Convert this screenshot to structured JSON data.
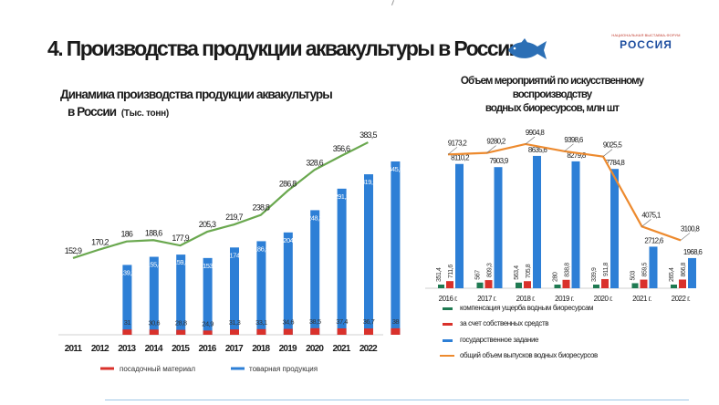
{
  "slide": {
    "title": "4. Производства продукции аквакультуры в России",
    "logo_small": "НАЦИОНАЛЬНАЯ ВЫСТАВКА-ФОРУМ",
    "logo_main": "РОССИЯ",
    "icon": "fish-icon"
  },
  "colors": {
    "blue": "#2d7fd6",
    "red": "#d9312b",
    "green_line": "#6aa84f",
    "orange_line": "#ed8a2e",
    "dark_green": "#1f7a52"
  },
  "chart_data": [
    {
      "type": "bar",
      "title_line1": "Динамика производства продукции аквакультуры",
      "title_line2": "в России",
      "unit": "(Тыс. тонн)",
      "categories": [
        "2011",
        "2012",
        "2013",
        "2014",
        "2015",
        "2016",
        "2017",
        "2018",
        "2019",
        "2020",
        "2021",
        "2022"
      ],
      "series": [
        {
          "name": "посадочный материал",
          "kind": "bar",
          "values": [
            null,
            31,
            30.6,
            28.8,
            24.9,
            31.3,
            33.1,
            34.6,
            38.5,
            37.4,
            36.7,
            38
          ]
        },
        {
          "name": "товарная продукция",
          "kind": "bar",
          "values": [
            null,
            139.2,
            155.4,
            159.8,
            153,
            174,
            186.5,
            204,
            248.3,
            291.2,
            319.9,
            345.5
          ]
        },
        {
          "name": "",
          "kind": "line",
          "values": [
            152.9,
            170.2,
            186,
            188.6,
            177.9,
            205.3,
            219.7,
            238.8,
            286.8,
            328.6,
            356.6,
            383.5
          ]
        }
      ],
      "labels": {
        "red": [
          "",
          "31",
          "30,6",
          "28,8",
          "24,9",
          "31,3",
          "33,1",
          "34,6",
          "38,5",
          "37,4",
          "36,7",
          "38"
        ],
        "blue": [
          "",
          "139,2",
          "155,4",
          "159,8",
          "153",
          "174",
          "186,5",
          "204",
          "248,3",
          "291,2",
          "319,9",
          "345,5"
        ],
        "line": [
          "152,9",
          "170,2",
          "186",
          "188,6",
          "177,9",
          "205,3",
          "219,7",
          "238,8",
          "286,8",
          "328,6",
          "356,6",
          "383,5"
        ]
      },
      "legend": [
        "посадочный материал",
        "товарная продукция"
      ],
      "legend_position": "bottom",
      "ylim": [
        0,
        400
      ]
    },
    {
      "type": "bar",
      "title_line1": "Объем мероприятий по искусственному",
      "title_line2": "воспроизводству",
      "title_line3": "водных биоресурсов, млн шт",
      "categories": [
        "2016 г.",
        "2017 г.",
        "2018 г.",
        "2019 г.",
        "2020 г.",
        "2021 г.",
        "2022 г."
      ],
      "series": [
        {
          "name": "компенсация ущерба водным биоресурсам",
          "kind": "bar",
          "values": [
            351.4,
            567,
            563.4,
            280,
            339.9,
            503,
            265.4
          ]
        },
        {
          "name": "за счет собственных средств",
          "kind": "bar",
          "values": [
            711.6,
            809.3,
            705.8,
            838.8,
            911.8,
            859.5,
            866.8
          ]
        },
        {
          "name": "государственное задание",
          "kind": "bar",
          "values": [
            8110.2,
            7903.9,
            8635.6,
            8279.8,
            7784.8,
            2712.6,
            1968.6
          ]
        },
        {
          "name": "общий объем выпусков водных биоресурсов",
          "kind": "line",
          "values": [
            9173.2,
            9280.2,
            9904.8,
            9398.6,
            9025.5,
            4075.1,
            3100.8
          ]
        }
      ],
      "labels": {
        "green": [
          "351,4",
          "567",
          "563,4",
          "280",
          "339,9",
          "503",
          "265,4"
        ],
        "red": [
          "711,6",
          "809,3",
          "705,8",
          "838,8",
          "911,8",
          "859,5",
          "866,8"
        ],
        "blue": [
          "8110,2",
          "7903,9",
          "8635,6",
          "8279,8",
          "7784,8",
          "2712,6",
          "1968,6"
        ],
        "line": [
          "9173,2",
          "9280,2",
          "9904,8",
          "9398,6",
          "9025,5",
          "4075,1",
          "3100,8"
        ]
      },
      "legend_position": "bottom",
      "ylim": [
        0,
        10500
      ]
    }
  ]
}
